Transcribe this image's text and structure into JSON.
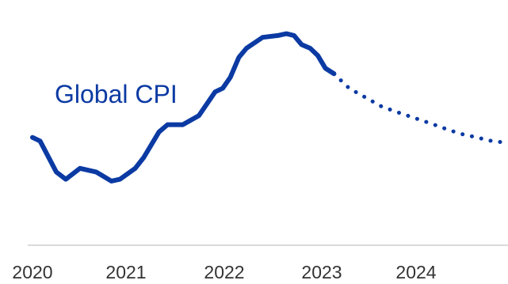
{
  "chart_data": {
    "type": "line",
    "title": "",
    "xlabel": "",
    "ylabel": "",
    "x_ticks": [
      "2020",
      "2021",
      "2022",
      "2023",
      "2024"
    ],
    "xlim": [
      2020.0,
      2025.0
    ],
    "ylim": [
      0,
      100
    ],
    "grid": false,
    "legend": "none",
    "colors": {
      "series": "#0b3aa3",
      "axis": "#d9d9d9",
      "ticks": "#333333"
    },
    "series": [
      {
        "name": "Global CPI",
        "style": "solid",
        "points": [
          [
            2020.0,
            41
          ],
          [
            2020.08,
            39
          ],
          [
            2020.25,
            22
          ],
          [
            2020.35,
            18
          ],
          [
            2020.5,
            24
          ],
          [
            2020.67,
            22
          ],
          [
            2020.83,
            17
          ],
          [
            2020.92,
            18
          ],
          [
            2021.08,
            24
          ],
          [
            2021.17,
            30
          ],
          [
            2021.33,
            44
          ],
          [
            2021.42,
            48
          ],
          [
            2021.58,
            48
          ],
          [
            2021.75,
            53
          ],
          [
            2021.92,
            66
          ],
          [
            2022.0,
            68
          ],
          [
            2022.08,
            74
          ],
          [
            2022.17,
            85
          ],
          [
            2022.25,
            90
          ],
          [
            2022.42,
            96
          ],
          [
            2022.58,
            97
          ],
          [
            2022.67,
            98
          ],
          [
            2022.75,
            97
          ],
          [
            2022.83,
            92
          ],
          [
            2022.92,
            90
          ],
          [
            2023.0,
            86
          ],
          [
            2023.08,
            79
          ],
          [
            2023.17,
            76
          ]
        ]
      },
      {
        "name": "",
        "style": "dotted",
        "points": [
          [
            2023.17,
            76
          ],
          [
            2023.33,
            68
          ],
          [
            2023.5,
            63
          ],
          [
            2023.67,
            58
          ],
          [
            2023.83,
            55
          ],
          [
            2024.0,
            52
          ],
          [
            2024.17,
            49
          ],
          [
            2024.33,
            46
          ],
          [
            2024.5,
            43
          ],
          [
            2024.67,
            41
          ],
          [
            2024.83,
            39
          ],
          [
            2025.0,
            38
          ]
        ]
      }
    ]
  }
}
